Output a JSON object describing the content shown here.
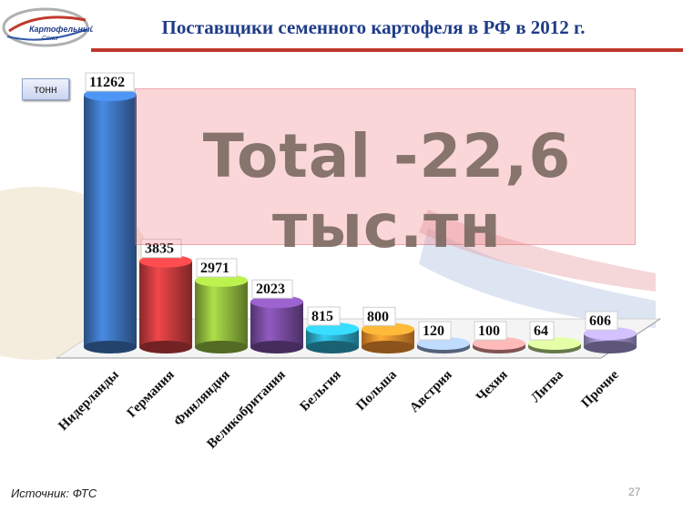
{
  "header": {
    "title": "Поставщики семенного картофеля в РФ в 2012 г.",
    "logo_text_line1": "Картофельный",
    "logo_text_line2": "Союз"
  },
  "unit_label": "тонн",
  "total_banner": "Total -22,6 тыс.тн",
  "source": "Источник: ФТС",
  "page_number": "27",
  "chart_data": {
    "type": "bar",
    "categories": [
      "Нидерланды",
      "Германия",
      "Финляндия",
      "Великобритания",
      "Бельгия",
      "Польша",
      "Австрия",
      "Чехия",
      "Литва",
      "Прочие"
    ],
    "values": [
      11262,
      3835,
      2971,
      2023,
      815,
      800,
      120,
      100,
      64,
      606
    ],
    "colors": [
      "#3a6fb6",
      "#c0393b",
      "#8bb33a",
      "#74499a",
      "#2aa4c2",
      "#e98a2b",
      "#8ea3cf",
      "#d88a8a",
      "#a9c97a",
      "#9c90c8"
    ],
    "title": "Поставщики семенного картофеля в РФ в 2012 г.",
    "ylabel": "тонн",
    "ylim": [
      0,
      11262
    ],
    "grid": false
  }
}
